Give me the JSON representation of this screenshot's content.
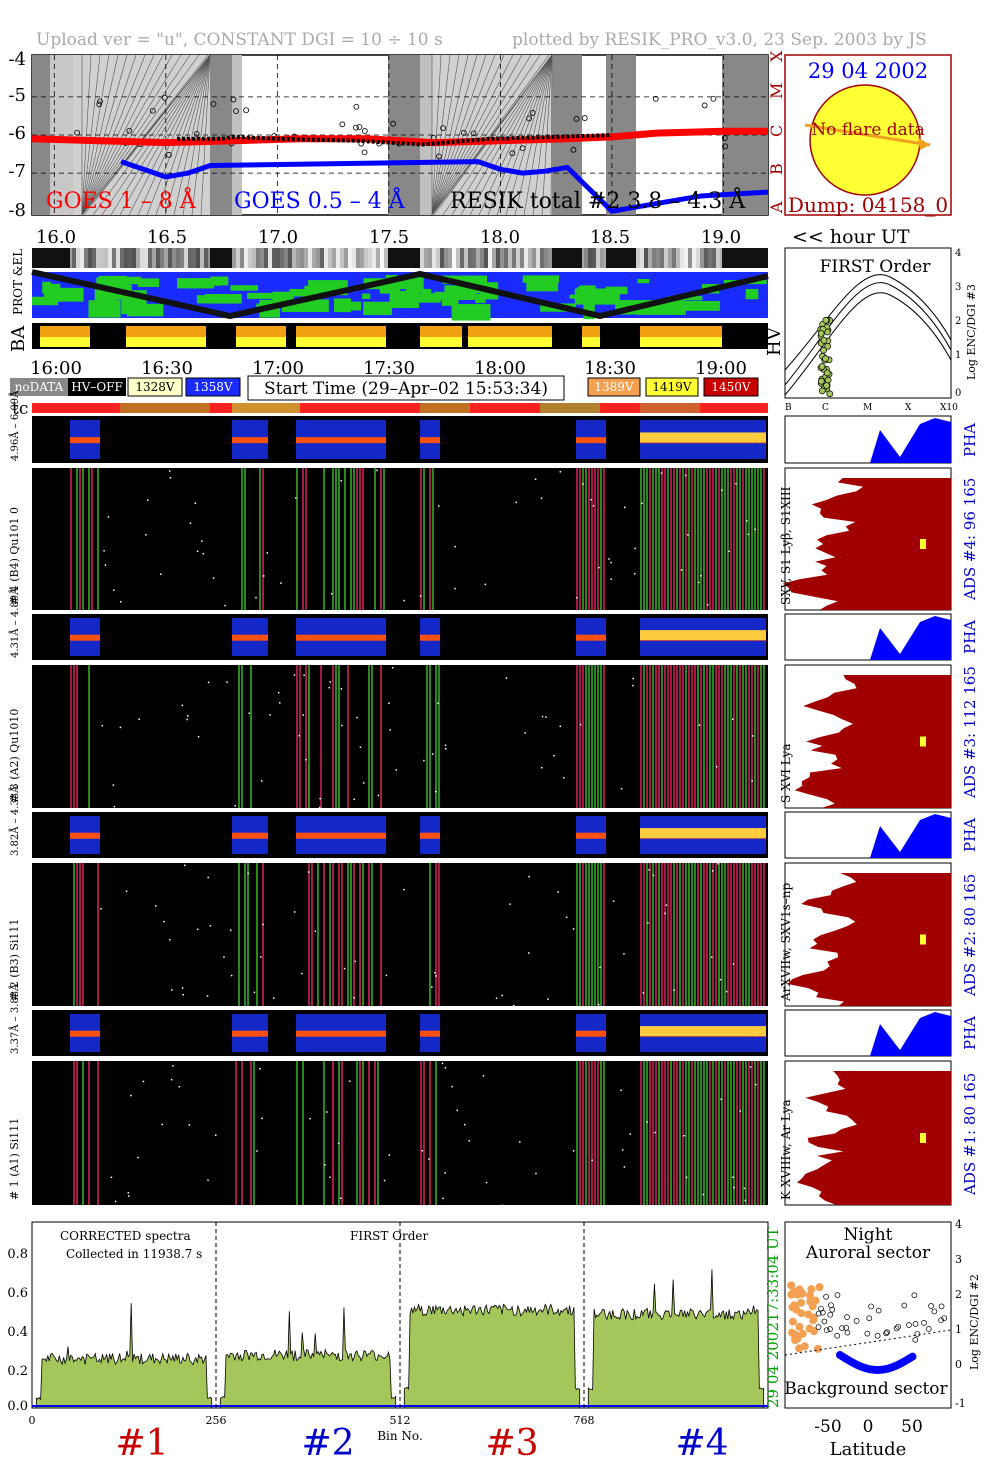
{
  "header": {
    "left": "Upload ver = \"u\", CONSTANT  DGI =  10 ÷  10 s",
    "right": "plotted by RESIK_PRO_v3.0, 23 Sep. 2003 by JS"
  },
  "goes": {
    "y_ticks": [
      "-4",
      "-5",
      "-6",
      "-7",
      "-8"
    ],
    "y_range": [
      -8.1,
      -3.9
    ],
    "x_ticks": [
      "16.0",
      "16.5",
      "17.0",
      "17.5",
      "18.0",
      "18.5",
      "19.0"
    ],
    "x_range": [
      15.9,
      19.2
    ],
    "class_labels": [
      "X",
      "M",
      "C",
      "B",
      "A"
    ],
    "legend": [
      "GOES 1 – 8 Å",
      "GOES 0.5 – 4 Å",
      "RESIK total #2  3.8 – 4.3 Å"
    ],
    "x_unit": "<< hour UT"
  },
  "sun": {
    "date": "29 04 2002",
    "note": "No flare data",
    "dump": "Dump: 04158_0"
  },
  "strip_labels": {
    "prot": "PROT &EL",
    "ba": "BA",
    "hv": "HV",
    "tc": "tc"
  },
  "time_ticks": [
    "16:00",
    "16:30",
    "17:00",
    "17:30",
    "18:00",
    "18:30",
    "19:00"
  ],
  "status": {
    "nodata": "noDATA",
    "hvoff": "HV–OFF",
    "v1": "1328V",
    "v2": "1358V",
    "start_time": "Start Time (29–Apr–02 15:53:34)",
    "v3": "1389V",
    "v4": "1419V",
    "v5": "1450V"
  },
  "first_order": {
    "title": "FIRST Order",
    "y_ticks": [
      "4",
      "3",
      "2",
      "1",
      "0"
    ],
    "y_label": "Log ENC/DGI #3",
    "x_ticks": [
      "B",
      "C",
      "M",
      "X",
      "X10"
    ]
  },
  "channels": [
    {
      "pha_label": "4.96Å – 6.09Å",
      "main_label": "# 4 (B4) Qu101 0",
      "line_label": "SXV, S1 Lyβ, S1XIII",
      "ads_label": "ADS #4:   96 165",
      "pha": "PHA"
    },
    {
      "pha_label": "4.31Å – 4.89Å",
      "main_label": "# 3 (A2) Qu1010",
      "line_label": "S XVI Lya",
      "ads_label": "ADS #3:   112 165",
      "pha": "PHA"
    },
    {
      "pha_label": "3.82Å – 4.33Å",
      "main_label": "# 2 (B3) Si111",
      "line_label": "ArXVIIw, SXV1s–np",
      "ads_label": "ADS #2:   80 165",
      "pha": "PHA"
    },
    {
      "pha_label": "3.37Å – 3.88Å",
      "main_label": "# 1 (A1) Si111",
      "line_label": "K XVIIIw, Ar Lya",
      "ads_label": "ADS #1:   80 165",
      "pha": "PHA"
    }
  ],
  "spectrum": {
    "title_left": "CORRECTED spectra",
    "collected": "Collected in 11938.7 s",
    "title_mid": "FIRST Order",
    "y_ticks": [
      "0.8",
      "0.6",
      "0.4",
      "0.2",
      "0.0"
    ],
    "x_ticks": [
      "0",
      "256",
      "512",
      "768"
    ],
    "x_label": "Bin No.",
    "time_stamp": "17:33:04 UT",
    "date_stamp": "29 04 2002",
    "channel_marks": [
      "#1",
      "#2",
      "#3",
      "#4"
    ]
  },
  "latitude": {
    "title1": "Night",
    "title2": "Auroral sector",
    "bottom": "Background sector",
    "x_ticks": [
      "-50",
      "0",
      "50"
    ],
    "x_label": "Latitude",
    "y_ticks": [
      "4",
      "3",
      "2",
      "1",
      "0",
      "-1"
    ],
    "y_label": "Log ENC/DGI #2"
  },
  "chart_data": {
    "type": "line",
    "goes_series": [
      {
        "name": "GOES 1 – 8 Å",
        "color": "#ff0000",
        "x": [
          15.9,
          16.2,
          16.5,
          16.8,
          17.1,
          17.4,
          17.7,
          18.0,
          18.3,
          18.5,
          18.7,
          19.0,
          19.2
        ],
        "y": [
          -6.1,
          -6.15,
          -6.2,
          -6.15,
          -6.1,
          -6.1,
          -6.2,
          -6.15,
          -6.1,
          -6.05,
          -5.95,
          -5.9,
          -5.9
        ]
      },
      {
        "name": "GOES 0.5 – 4 Å",
        "color": "#0000ff",
        "x": [
          16.3,
          16.4,
          16.5,
          16.6,
          16.7,
          17.9,
          18.0,
          18.1,
          18.2,
          18.3,
          18.5,
          18.7,
          18.9,
          19.2
        ],
        "y": [
          -6.7,
          -6.9,
          -7.1,
          -7.0,
          -6.8,
          -6.7,
          -6.9,
          -7.0,
          -6.95,
          -6.85,
          -8.0,
          -7.8,
          -7.6,
          -7.5
        ]
      }
    ],
    "spectrum_segments": [
      {
        "name": "#1",
        "x_range": [
          0,
          256
        ],
        "level": 0.25
      },
      {
        "name": "#2",
        "x_range": [
          256,
          512
        ],
        "level": 0.27
      },
      {
        "name": "#3",
        "x_range": [
          512,
          768
        ],
        "level": 0.5
      },
      {
        "name": "#4",
        "x_range": [
          768,
          1024
        ],
        "level": 0.48
      }
    ],
    "spectrum_ylim": [
      0,
      0.95
    ]
  },
  "colors": {
    "red": "#ff0000",
    "blue": "#0000ff",
    "dark_red": "#a00000",
    "green_fill": "#a4c65a",
    "orange": "#f3a052",
    "navy": "#000080"
  }
}
